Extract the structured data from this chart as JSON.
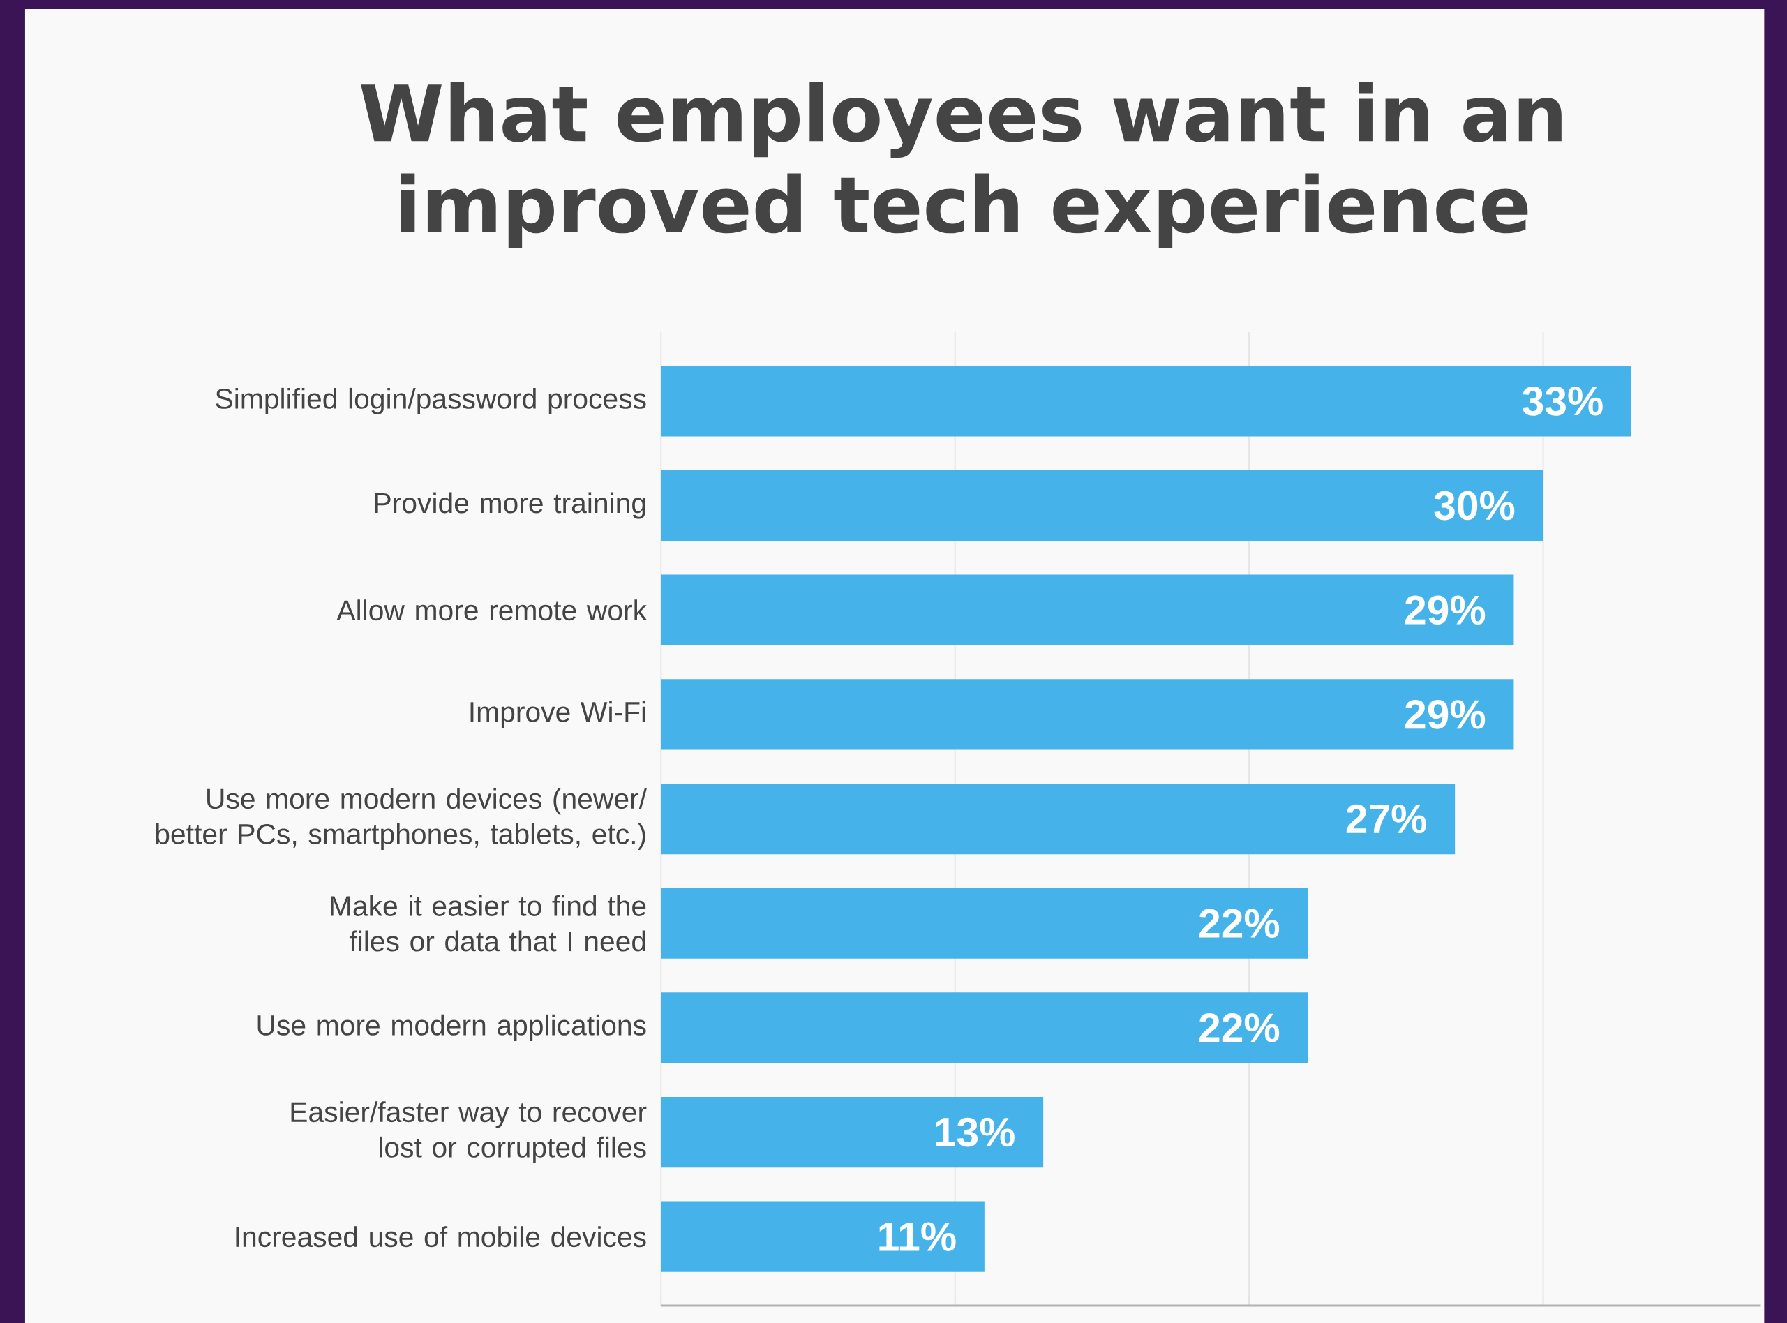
{
  "chart_data": {
    "type": "bar",
    "orientation": "horizontal",
    "title": "What employees want in an improved tech experience",
    "categories": [
      "Simplified login/password process",
      "Provide more training",
      "Allow more remote work",
      "Improve Wi-Fi",
      "Use more modern devices (newer/ better PCs, smartphones, tablets, etc.)",
      "Make it easier to find the files or data that I need",
      "Use more modern applications",
      "Easier/faster way to recover lost or corrupted files",
      "Increased use of mobile devices"
    ],
    "values": [
      33,
      30,
      29,
      29,
      27,
      22,
      22,
      13,
      11
    ],
    "value_labels": [
      "33%",
      "30%",
      "29%",
      "29%",
      "27%",
      "22%",
      "22%",
      "13%",
      "11%"
    ],
    "color": "#45b3ea",
    "xlim": [
      0,
      37.4
    ],
    "xticks": [
      {
        "value": 0,
        "label": null
      },
      {
        "value": 10,
        "label": null
      },
      {
        "value": 20,
        "label": null
      },
      {
        "value": 30,
        "label": null
      }
    ],
    "grid": "x",
    "tick_labels": "y"
  }
}
